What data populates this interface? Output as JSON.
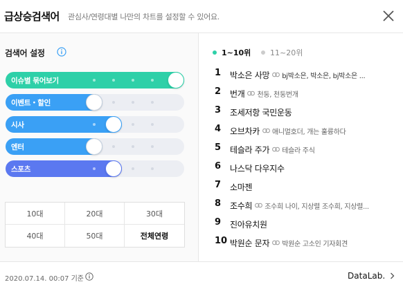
{
  "header": {
    "title": "급상승검색어",
    "subtitle": "관심사/연령대별 나만의 차트를 설정할 수 있어요."
  },
  "settings": {
    "title": "검색어 설정",
    "sliders": [
      {
        "label": "이슈별 묶어보기",
        "level": 1.0,
        "color": "#2ed0a8"
      },
      {
        "label": "이벤트・할인",
        "level": 0.0,
        "color": "#3aa0f5"
      },
      {
        "label": "시사",
        "level": 0.25,
        "color": "#3aa0f5"
      },
      {
        "label": "엔터",
        "level": 0.0,
        "color": "#3aa0f5"
      },
      {
        "label": "스포츠",
        "level": 0.25,
        "color": "#5b78f0"
      }
    ]
  },
  "age_filter": {
    "options": [
      "10대",
      "20대",
      "30대",
      "40대",
      "50대",
      "전체연령"
    ],
    "selected": "전체연령"
  },
  "tabs": [
    {
      "label": "1~10위",
      "active": true
    },
    {
      "label": "11~20위",
      "active": false
    }
  ],
  "ranks": [
    {
      "num": "1",
      "keyword": "박소은 사망",
      "related": "bj박소은, 박소은, bj박소은 ...",
      "related_bold": true
    },
    {
      "num": "2",
      "keyword": "번개",
      "related": "천둥, 천둥번개"
    },
    {
      "num": "3",
      "keyword": "조세저항 국민운동",
      "related": ""
    },
    {
      "num": "4",
      "keyword": "오브차카",
      "related": "애니멀호더, 개는 훌륭하다"
    },
    {
      "num": "5",
      "keyword": "테슬라 주가",
      "related": "테슬라 주식"
    },
    {
      "num": "6",
      "keyword": "나스닥 다우지수",
      "related": ""
    },
    {
      "num": "7",
      "keyword": "소마젠",
      "related": ""
    },
    {
      "num": "8",
      "keyword": "조수희",
      "related": "조수희 나이, 지상렬 조수희, 지상렬..."
    },
    {
      "num": "9",
      "keyword": "진아유치원",
      "related": ""
    },
    {
      "num": "10",
      "keyword": "박원순 문자",
      "related": "박원순 고소인 기자회견"
    }
  ],
  "footer": {
    "date": "2020.07.14. 00:07 기준",
    "brand": "DataLab."
  },
  "colors": {
    "accent_green": "#2ed0a8",
    "accent_blue": "#3aa0f5"
  }
}
